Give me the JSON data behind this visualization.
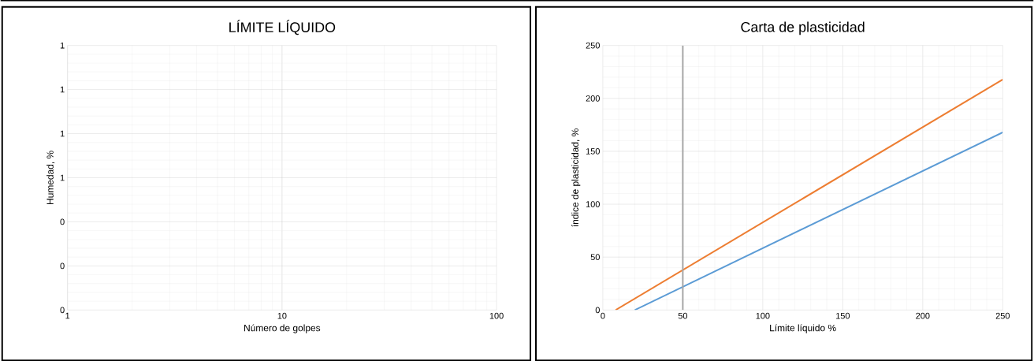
{
  "chart_data": [
    {
      "type": "line",
      "title": "LÍMITE LÍQUIDO",
      "xlabel": "Número de golpes",
      "ylabel": "Humedad, %",
      "log": "x",
      "xlim": [
        1,
        100
      ],
      "xticks": [
        1,
        10,
        100
      ],
      "ylim": [
        0,
        1.2
      ],
      "yticks": [
        0,
        {
          "value": 0.2,
          "label": "0"
        },
        {
          "value": 0.4,
          "label": "0"
        },
        {
          "value": 0.6,
          "label": "1"
        },
        {
          "value": 0.8,
          "label": "1"
        },
        1,
        {
          "value": 1.2,
          "label": "1"
        }
      ],
      "grid": true
    },
    {
      "type": "line",
      "title": "Carta de plasticidad",
      "xlabel": "Límite líquido %",
      "ylabel": "índice de plasticidad, %",
      "xlim": [
        0,
        250
      ],
      "xticks": [
        0,
        50,
        100,
        150,
        200,
        250
      ],
      "ylim": [
        0,
        250
      ],
      "yticks": [
        0,
        50,
        100,
        150,
        200,
        250
      ],
      "grid": true,
      "series": [
        {
          "color": "#ed7d31",
          "x": [
            8,
            250
          ],
          "values": [
            0,
            217.8
          ]
        },
        {
          "color": "#5b9bd5",
          "x": [
            20,
            250
          ],
          "values": [
            0,
            167.9
          ]
        }
      ],
      "ref_lines": [
        {
          "axis": "x",
          "value": 50,
          "color": "#a6a6a6"
        }
      ]
    }
  ]
}
